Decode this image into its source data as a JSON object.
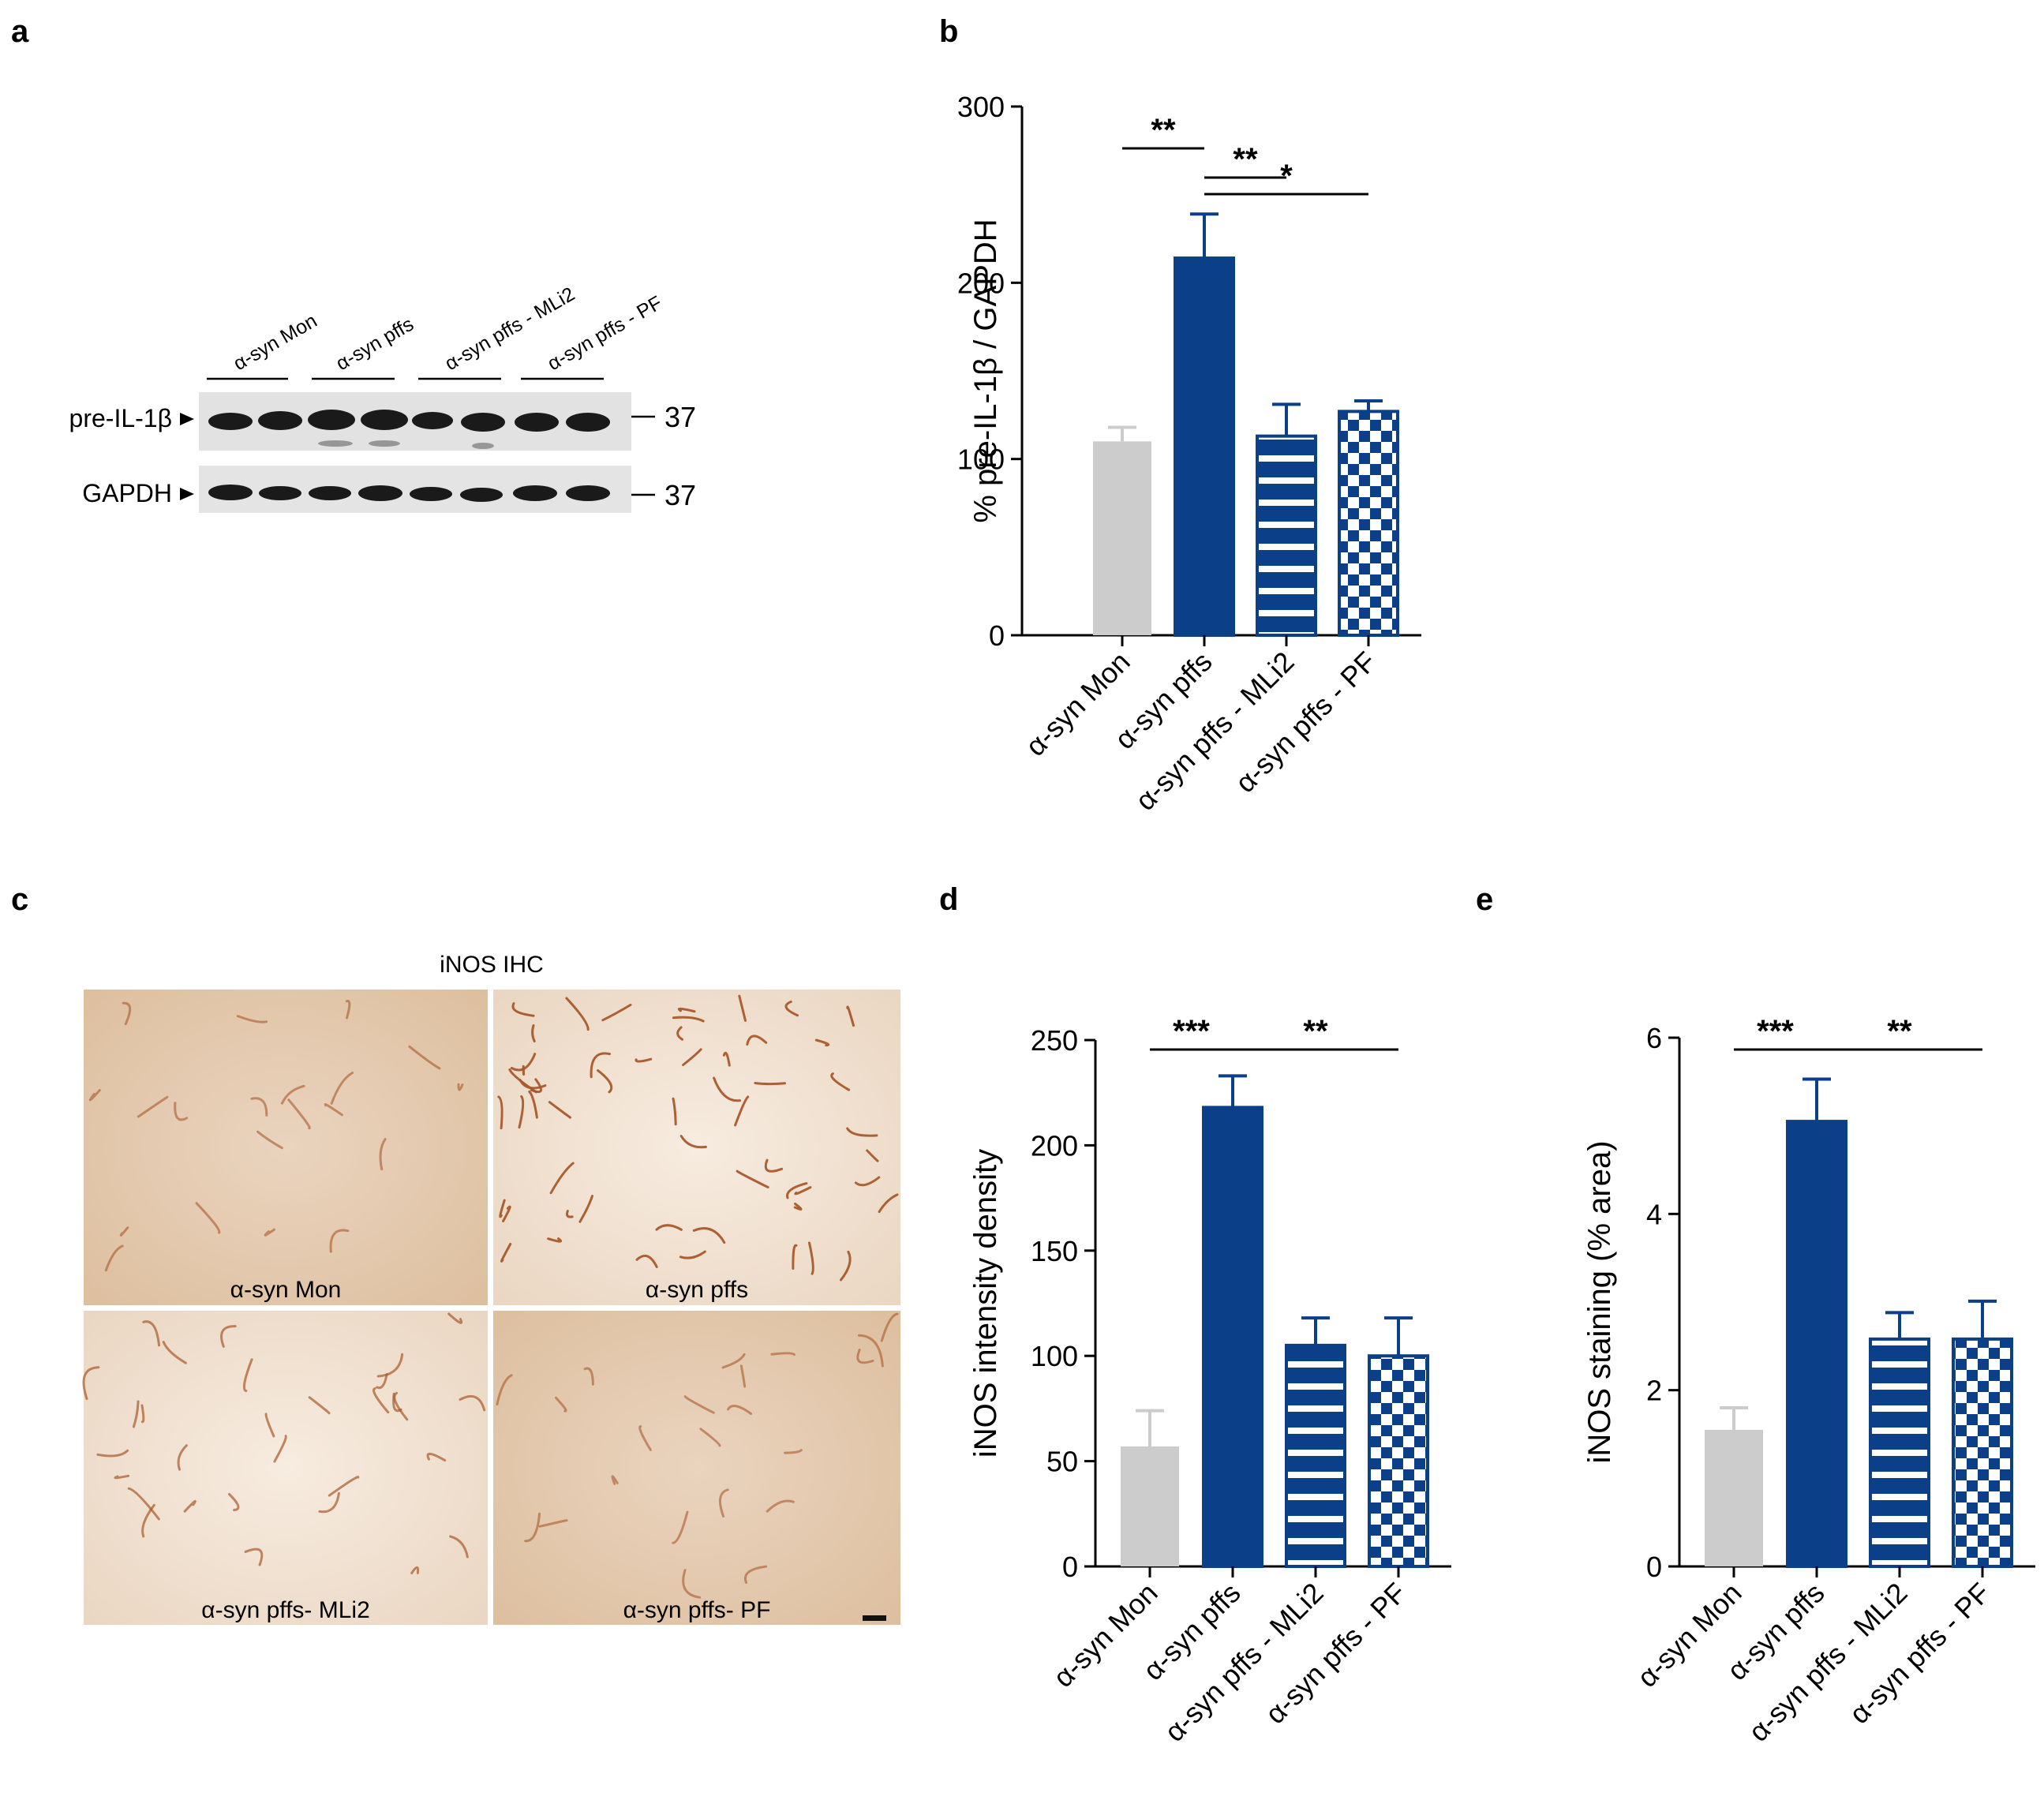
{
  "panels": {
    "a": "a",
    "b": "b",
    "c": "c",
    "d": "d",
    "e": "e"
  },
  "blot": {
    "lanes": [
      "α-syn Mon",
      "α-syn pffs",
      "α-syn pffs - MLi2",
      "α-syn pffs - PF"
    ],
    "rows": [
      {
        "label": "pre-IL-1β",
        "marker": "37"
      },
      {
        "label": "GAPDH",
        "marker": "37"
      }
    ]
  },
  "ihc": {
    "title": "iNOS IHC",
    "tiles": [
      "α-syn Mon",
      "α-syn pffs",
      "α-syn pffs- MLi2",
      "α-syn pffs- PF"
    ]
  },
  "colors": {
    "grey": "#cccccc",
    "blue": "#0b3f87"
  },
  "chart_data": [
    {
      "panel": "b",
      "type": "bar",
      "categories": [
        "α-syn Mon",
        "α-syn pffs",
        "α-syn pffs - MLi2",
        "α-syn pffs - PF"
      ],
      "values": [
        110,
        214,
        113,
        127
      ],
      "errors": [
        8,
        25,
        18,
        6
      ],
      "patterns": [
        "solid-grey",
        "solid-blue",
        "stripes",
        "checker"
      ],
      "ylabel": "% pre-IL-1β / GAPDH",
      "ylim": [
        0,
        300
      ],
      "yticks": [
        0,
        100,
        200,
        300
      ],
      "significance": [
        {
          "from": 0,
          "to": 1,
          "label": "**"
        },
        {
          "from": 1,
          "to": 2,
          "label": "**"
        },
        {
          "from": 1,
          "to": 3,
          "label": "*"
        }
      ]
    },
    {
      "panel": "d",
      "type": "bar",
      "categories": [
        "α-syn Mon",
        "α-syn pffs",
        "α-syn pffs - MLi2",
        "α-syn pffs - PF"
      ],
      "values": [
        57,
        218,
        105,
        100
      ],
      "errors": [
        17,
        15,
        13,
        18
      ],
      "patterns": [
        "solid-grey",
        "solid-blue",
        "stripes",
        "checker"
      ],
      "ylabel": "iNOS intensity density",
      "ylim": [
        0,
        250
      ],
      "yticks": [
        0,
        50,
        100,
        150,
        200,
        250
      ],
      "significance": [
        {
          "from": 0,
          "to": 1,
          "label": "***"
        },
        {
          "from": 1,
          "to": 3,
          "label": "**"
        }
      ]
    },
    {
      "panel": "e",
      "type": "bar",
      "categories": [
        "α-syn Mon",
        "α-syn pffs",
        "α-syn pffs - MLi2",
        "α-syn pffs - PF"
      ],
      "values": [
        1.55,
        5.05,
        2.58,
        2.58
      ],
      "errors": [
        0.25,
        0.48,
        0.3,
        0.43
      ],
      "patterns": [
        "solid-grey",
        "solid-blue",
        "stripes",
        "checker"
      ],
      "ylabel": "iNOS staining (% area)",
      "ylim": [
        0,
        6
      ],
      "yticks": [
        0,
        2,
        4,
        6
      ],
      "significance": [
        {
          "from": 0,
          "to": 1,
          "label": "***"
        },
        {
          "from": 1,
          "to": 3,
          "label": "**"
        }
      ]
    }
  ]
}
